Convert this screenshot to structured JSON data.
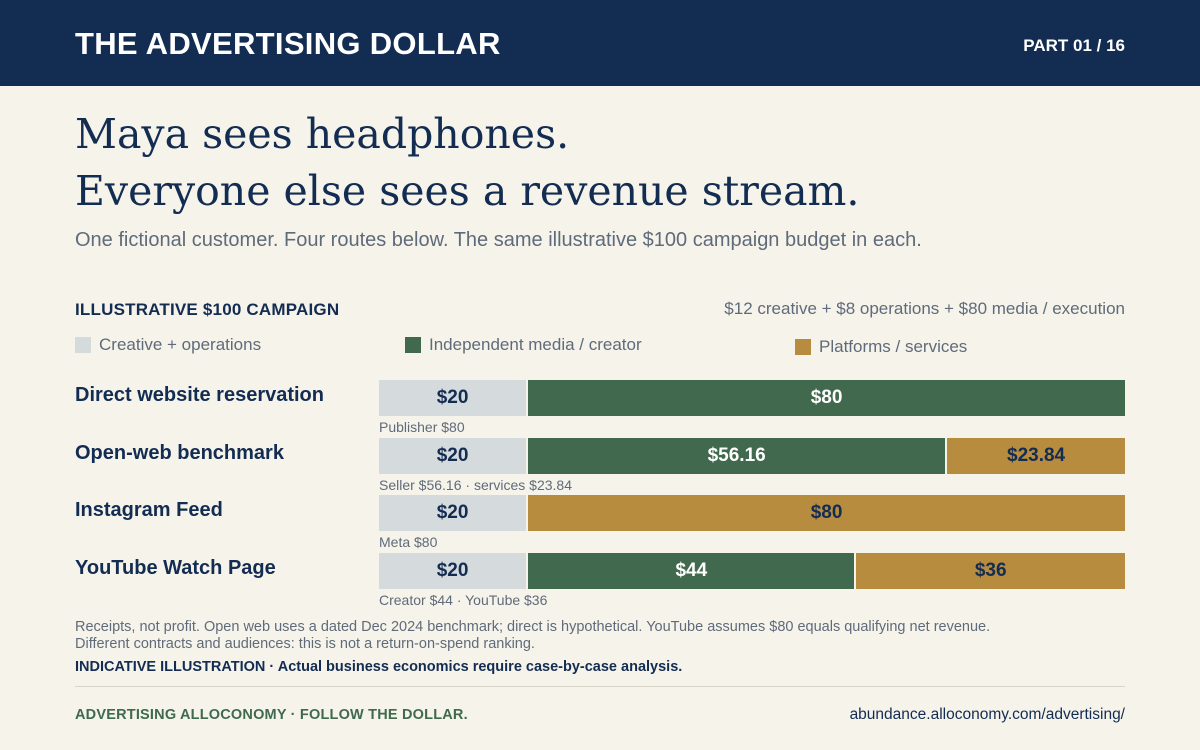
{
  "header": {
    "title": "THE ADVERTISING DOLLAR",
    "part": "PART 01 / 16"
  },
  "headline": {
    "line1": "Maya sees headphones.",
    "line2": "Everyone else sees a revenue stream."
  },
  "subtitle": "One fictional customer. Four routes below. The same illustrative $100 campaign budget in each.",
  "colors": {
    "header_bg": "#132c52",
    "creative_ops": "#d5dadd",
    "independent": "#41694e",
    "platforms": "#b88c3e",
    "background": "#f6f3ea"
  },
  "chart_data": {
    "type": "bar",
    "orientation": "horizontal",
    "stacked": true,
    "title": "ILLUSTRATIVE $100 CAMPAIGN",
    "note": "$12 creative + $8 operations + $80 media / execution",
    "xlim": [
      0,
      100
    ],
    "legend": [
      {
        "key": "creative",
        "label": "Creative + operations",
        "color": "#d5dadd"
      },
      {
        "key": "independent",
        "label": "Independent media / creator",
        "color": "#41694e"
      },
      {
        "key": "platforms",
        "label": "Platforms / services",
        "color": "#b88c3e"
      }
    ],
    "rows": [
      {
        "label": "Direct website reservation",
        "sublabel": "Publisher $80",
        "segments": [
          {
            "series": "creative",
            "value": 20,
            "label": "$20"
          },
          {
            "series": "independent",
            "value": 80,
            "label": "$80"
          }
        ]
      },
      {
        "label": "Open-web benchmark",
        "sublabel": "Seller $56.16 · services $23.84",
        "segments": [
          {
            "series": "creative",
            "value": 20,
            "label": "$20"
          },
          {
            "series": "independent",
            "value": 56.16,
            "label": "$56.16"
          },
          {
            "series": "platforms",
            "value": 23.84,
            "label": "$23.84"
          }
        ]
      },
      {
        "label": "Instagram Feed",
        "sublabel": "Meta $80",
        "segments": [
          {
            "series": "creative",
            "value": 20,
            "label": "$20"
          },
          {
            "series": "platforms",
            "value": 80,
            "label": "$80"
          }
        ]
      },
      {
        "label": "YouTube Watch Page",
        "sublabel": "Creator $44 · YouTube $36",
        "segments": [
          {
            "series": "creative",
            "value": 20,
            "label": "$20"
          },
          {
            "series": "independent",
            "value": 44,
            "label": "$44"
          },
          {
            "series": "platforms",
            "value": 36,
            "label": "$36"
          }
        ]
      }
    ]
  },
  "notes": {
    "line1": "Receipts, not profit. Open web uses a dated Dec 2024 benchmark; direct is hypothetical. YouTube assumes $80 equals qualifying net revenue.",
    "line2": "Different contracts and audiences: this is not a return-on-spend ranking."
  },
  "disclaimer": "INDICATIVE ILLUSTRATION · Actual business economics require case-by-case analysis.",
  "footer": {
    "left": "ADVERTISING ALLOCONOMY · FOLLOW THE DOLLAR.",
    "right": "abundance.alloconomy.com/advertising/"
  }
}
